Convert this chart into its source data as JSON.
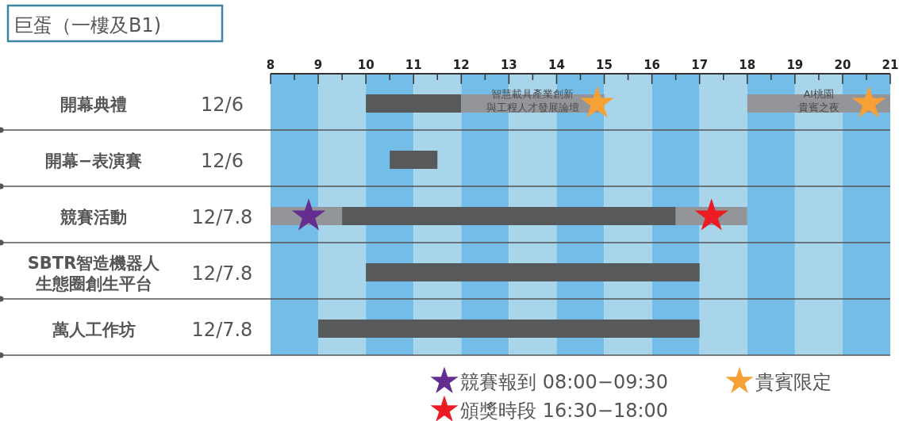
{
  "chart_data": {
    "type": "bar",
    "orientation": "horizontal",
    "title": "巨蛋（一樓及B1)",
    "categories": [
      "開幕典禮",
      "開幕−表演賽",
      "競賽活動",
      "SBTR智造機器人生態圈創生平台",
      "萬人工作坊"
    ],
    "y2_categories": [
      "12/6",
      "12/6",
      "12/7.8",
      "12/7.8",
      "12/7.8"
    ],
    "series": [
      {
        "color": "#939598",
        "base": [
          null,
          null,
          8,
          null,
          null
        ],
        "values": [
          null,
          null,
          1.5,
          null,
          null
        ]
      },
      {
        "color": "#58595b",
        "base": [
          10,
          10.5,
          9.5,
          10,
          9
        ],
        "values": [
          2,
          1,
          7,
          7,
          8
        ]
      },
      {
        "color": "#939598",
        "base": [
          12,
          null,
          16.5,
          null,
          null
        ],
        "values": [
          3,
          null,
          1.5,
          null,
          null
        ]
      },
      {
        "color": "#939598",
        "base": [
          18,
          null,
          null,
          null,
          null
        ],
        "values": [
          3,
          null,
          null,
          null,
          null
        ]
      },
      {
        "type": "scatter",
        "name": "競賽報到 08:00−09:30",
        "color": "#662d91",
        "marker": "star",
        "values": [
          null,
          null,
          8.8,
          null,
          null
        ]
      },
      {
        "type": "scatter",
        "name": "貴賓限定",
        "color": "#f7a035",
        "marker": "star",
        "values": [
          14.85,
          null,
          null,
          null,
          null
        ]
      },
      {
        "type": "scatter",
        "color": "#f7a035",
        "marker": "star",
        "values": [
          20.55,
          null,
          null,
          null,
          null
        ]
      },
      {
        "type": "scatter",
        "name": "頒獎時段 16:30−18:00",
        "color": "#ed1c24",
        "marker": "star",
        "values": [
          null,
          null,
          17.25,
          null,
          null
        ]
      }
    ],
    "xlim": [
      8,
      21
    ],
    "xticks": [
      8,
      {
        "value": 8.5,
        "label": null
      },
      9,
      {
        "value": 9.5,
        "label": null
      },
      10,
      {
        "value": 10.5,
        "label": null
      },
      11,
      {
        "value": 11.5,
        "label": null
      },
      12,
      {
        "value": 12.5,
        "label": null
      },
      13,
      {
        "value": 13.5,
        "label": null
      },
      14,
      {
        "value": 14.5,
        "label": null
      },
      15,
      {
        "value": 15.5,
        "label": null
      },
      16,
      {
        "value": 16.5,
        "label": null
      },
      17,
      {
        "value": 17.5,
        "label": null
      },
      18,
      {
        "value": 18.5,
        "label": null
      },
      19,
      {
        "value": 19.5,
        "label": null
      },
      20,
      {
        "value": 20.5,
        "label": null
      },
      21
    ],
    "bands": [
      {
        "axis": "x",
        "from": 8,
        "to": 9,
        "color": "#74bde8"
      },
      {
        "axis": "x",
        "from": 9,
        "to": 10,
        "color": "#a9d5ea"
      },
      {
        "axis": "x",
        "from": 10,
        "to": 11,
        "color": "#74bde8"
      },
      {
        "axis": "x",
        "from": 11,
        "to": 12,
        "color": "#a9d5ea"
      },
      {
        "axis": "x",
        "from": 12,
        "to": 13,
        "color": "#74bde8"
      },
      {
        "axis": "x",
        "from": 13,
        "to": 14,
        "color": "#a9d5ea"
      },
      {
        "axis": "x",
        "from": 14,
        "to": 15,
        "color": "#74bde8"
      },
      {
        "axis": "x",
        "from": 15,
        "to": 16,
        "color": "#a9d5ea"
      },
      {
        "axis": "x",
        "from": 16,
        "to": 17,
        "color": "#74bde8"
      },
      {
        "axis": "x",
        "from": 17,
        "to": 18,
        "color": "#a9d5ea"
      },
      {
        "axis": "x",
        "from": 18,
        "to": 19,
        "color": "#74bde8"
      },
      {
        "axis": "x",
        "from": 19,
        "to": 20,
        "color": "#a9d5ea"
      },
      {
        "axis": "x",
        "from": 20,
        "to": 21,
        "color": "#74bde8"
      }
    ],
    "annotations": [
      "智慧載具產業創新與工程人才發展論壇",
      "AI桃園貴賓之夜"
    ],
    "legend": "bottom"
  }
}
